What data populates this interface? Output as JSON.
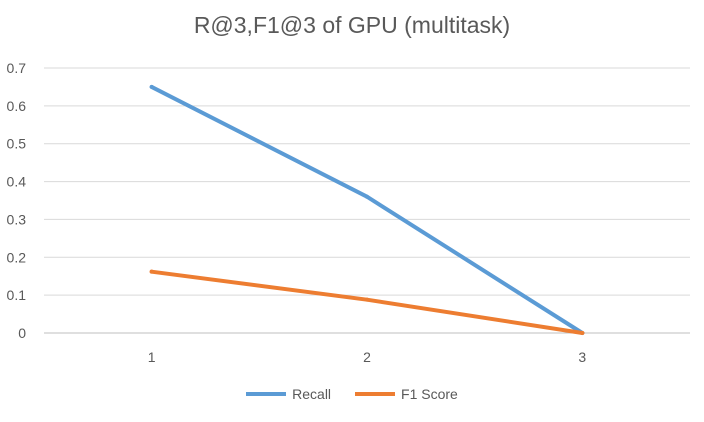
{
  "chart_data": {
    "type": "line",
    "title": "R@3,F1@3 of GPU (multitask)",
    "xlabel": "",
    "ylabel": "",
    "categories": [
      "1",
      "2",
      "3"
    ],
    "ylim": [
      0,
      0.7
    ],
    "yticks": [
      0,
      0.1,
      0.2,
      0.3,
      0.4,
      0.5,
      0.6,
      0.7
    ],
    "grid": true,
    "legend_position": "bottom",
    "series": [
      {
        "name": "Recall",
        "color": "#5B9BD5",
        "values": [
          0.65,
          0.36,
          0.0
        ]
      },
      {
        "name": "F1 Score",
        "color": "#ED7D31",
        "values": [
          0.162,
          0.088,
          0.0
        ]
      }
    ]
  }
}
